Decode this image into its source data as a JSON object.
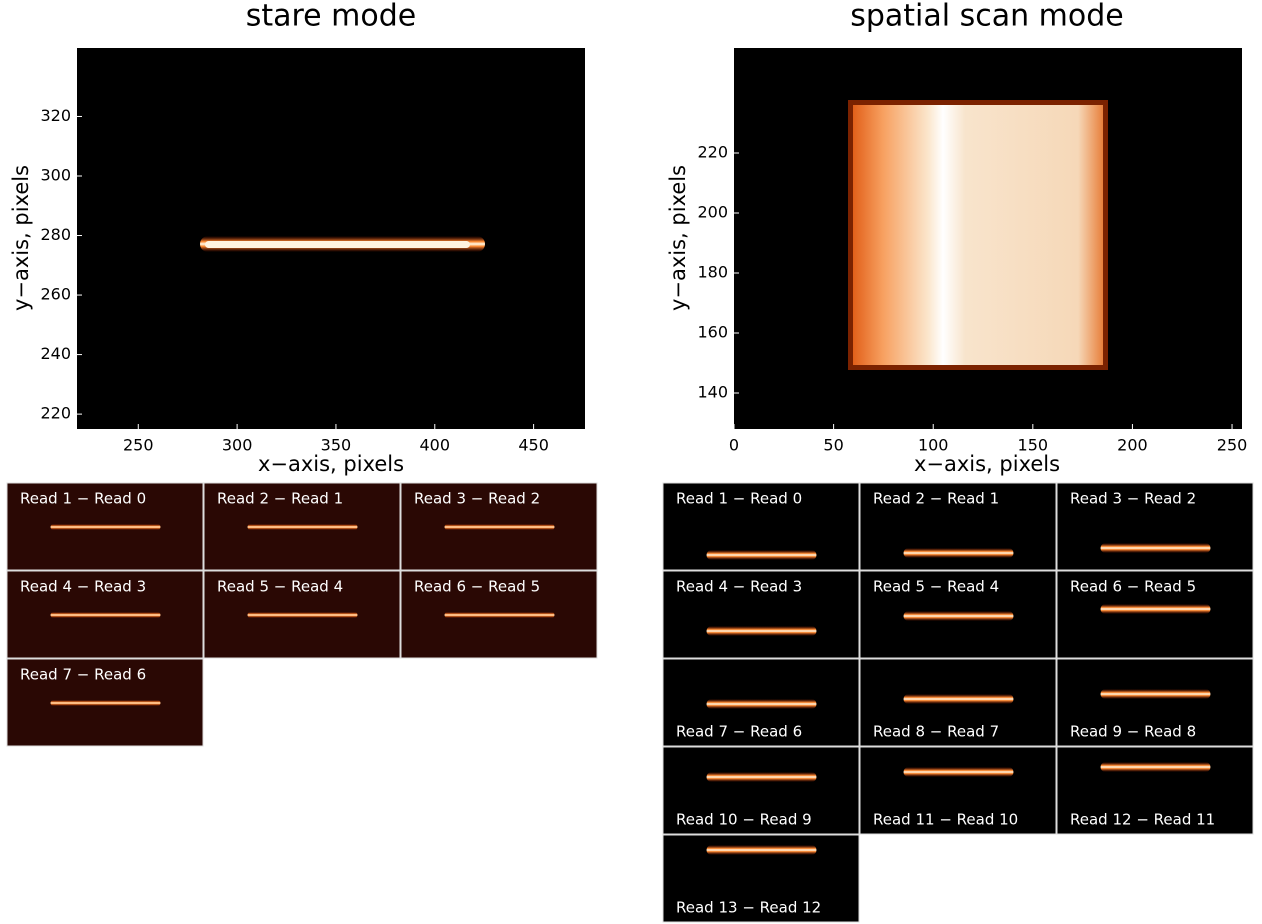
{
  "panels": [
    {
      "title": "stare mode",
      "x_label": "x−axis, pixels",
      "y_label": "y−axis, pixels",
      "xlim": [
        219,
        476
      ],
      "ylim": [
        215,
        343
      ],
      "xticks": [
        250,
        300,
        350,
        400,
        450
      ],
      "yticks": [
        220,
        240,
        260,
        280,
        300,
        320
      ],
      "reads": [
        "Read 1 − Read 0",
        "Read 2 − Read 1",
        "Read 3 − Read 2",
        "Read 4 − Read 3",
        "Read 5 − Read 4",
        "Read 6 − Read 5",
        "Read 7 − Read 6"
      ]
    },
    {
      "title": "spatial scan mode",
      "x_label": "x−axis, pixels",
      "y_label": "y−axis, pixels",
      "xlim": [
        0,
        255
      ],
      "ylim": [
        128,
        255
      ],
      "xticks": [
        0,
        50,
        100,
        150,
        200,
        250
      ],
      "yticks": [
        140,
        160,
        180,
        200,
        220
      ],
      "reads": [
        "Read 1 − Read 0",
        "Read 2 − Read 1",
        "Read 3 − Read 2",
        "Read 4 − Read 3",
        "Read 5 − Read 4",
        "Read 6 − Read 5",
        "Read 7 − Read 6",
        "Read 8 − Read 7",
        "Read 9 − Read 8",
        "Read 10 − Read 9",
        "Read 11 − Read 10",
        "Read 12 − Read 11",
        "Read 13 − Read 12"
      ]
    }
  ]
}
